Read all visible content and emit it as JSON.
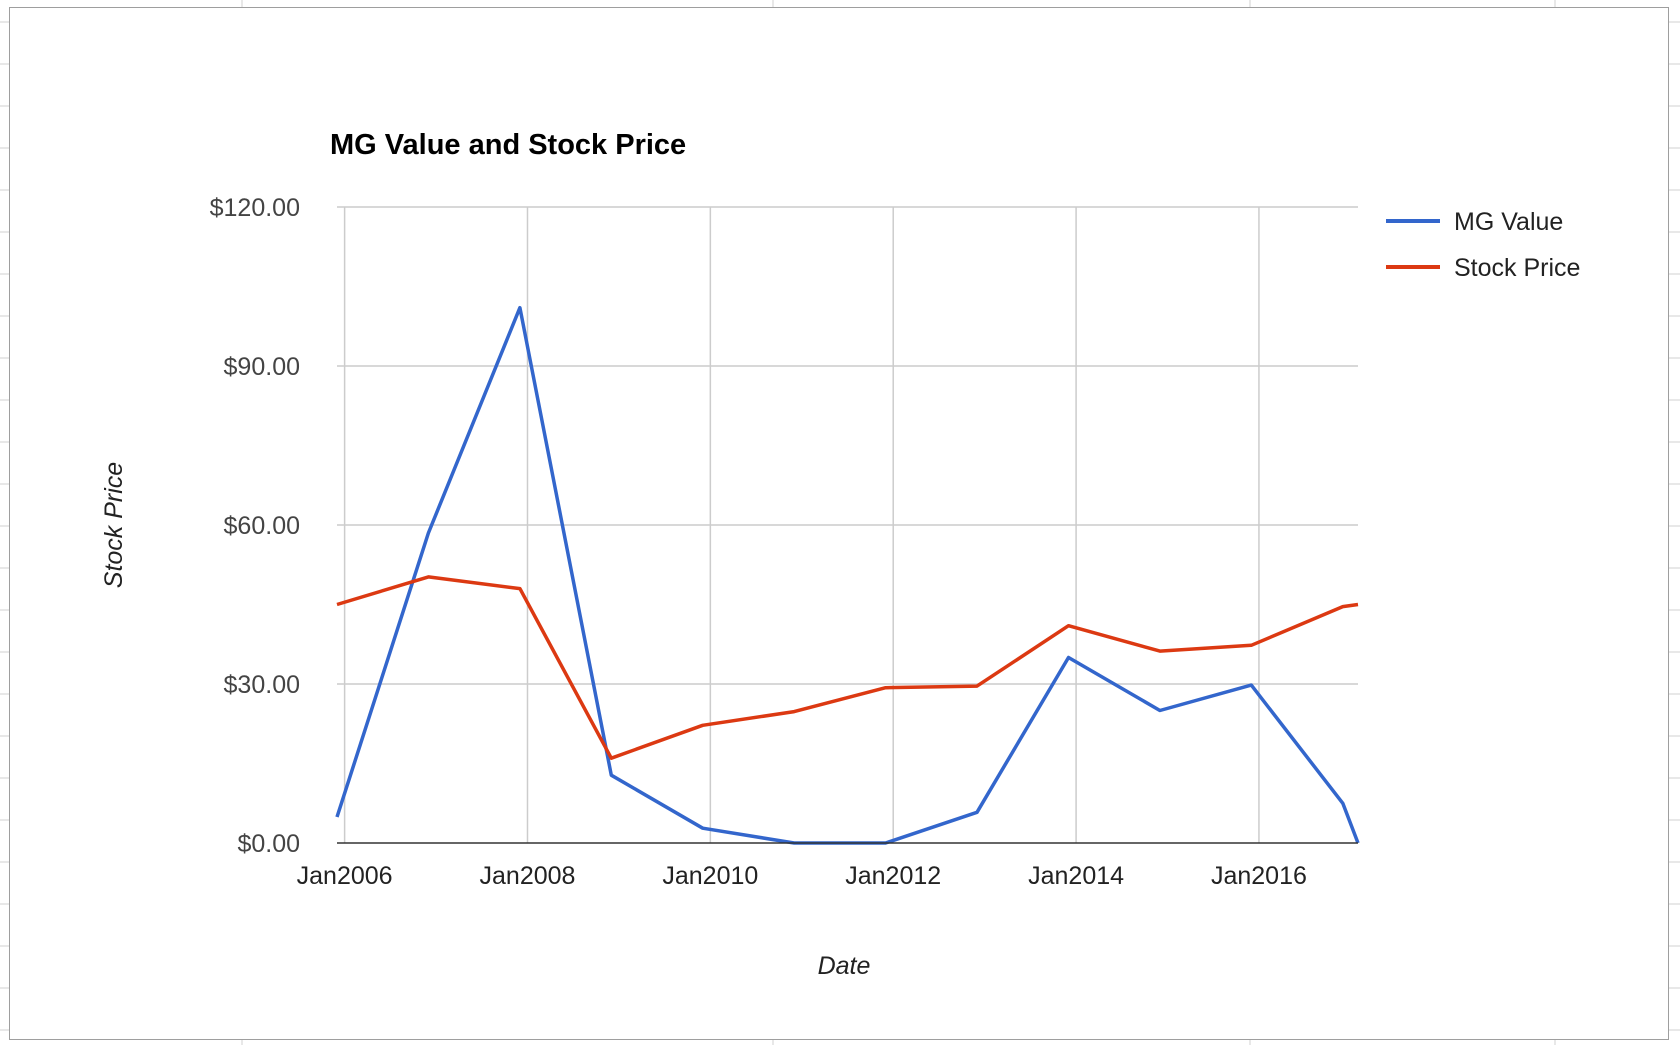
{
  "chart_data": {
    "type": "line",
    "title": "MG Value and Stock Price",
    "xlabel": "Date",
    "ylabel": "Stock Price",
    "x_ticks": [
      "Jan2006",
      "Jan2008",
      "Jan2010",
      "Jan2012",
      "Jan2014",
      "Jan2016"
    ],
    "y_ticks": [
      "$0.00",
      "$30.00",
      "$60.00",
      "$90.00",
      "$120.00"
    ],
    "ylim": [
      0,
      120
    ],
    "xlim": [
      "2005-12-01",
      "2017-02-01"
    ],
    "grid": true,
    "legend": "right",
    "series": [
      {
        "name": "MG Value",
        "color": "#3366cc",
        "points": [
          [
            "2005-12",
            4.9
          ],
          [
            "2006-12",
            58.5
          ],
          [
            "2007-12",
            101.0
          ],
          [
            "2008-12",
            12.8
          ],
          [
            "2009-12",
            2.8
          ],
          [
            "2010-12",
            0.0
          ],
          [
            "2011-12",
            0.0
          ],
          [
            "2012-12",
            5.8
          ],
          [
            "2013-12",
            35.0
          ],
          [
            "2014-12",
            25.0
          ],
          [
            "2015-12",
            29.8
          ],
          [
            "2016-12",
            7.5
          ],
          [
            "2017-02",
            0.0
          ]
        ]
      },
      {
        "name": "Stock Price",
        "color": "#dc3912",
        "points": [
          [
            "2005-12",
            45.0
          ],
          [
            "2006-12",
            50.2
          ],
          [
            "2007-12",
            48.0
          ],
          [
            "2008-12",
            16.0
          ],
          [
            "2009-12",
            22.2
          ],
          [
            "2010-12",
            24.8
          ],
          [
            "2011-12",
            29.3
          ],
          [
            "2012-12",
            29.6
          ],
          [
            "2013-12",
            41.0
          ],
          [
            "2014-12",
            36.2
          ],
          [
            "2015-12",
            37.3
          ],
          [
            "2016-12",
            44.6
          ],
          [
            "2017-02",
            45.0
          ]
        ]
      }
    ]
  }
}
